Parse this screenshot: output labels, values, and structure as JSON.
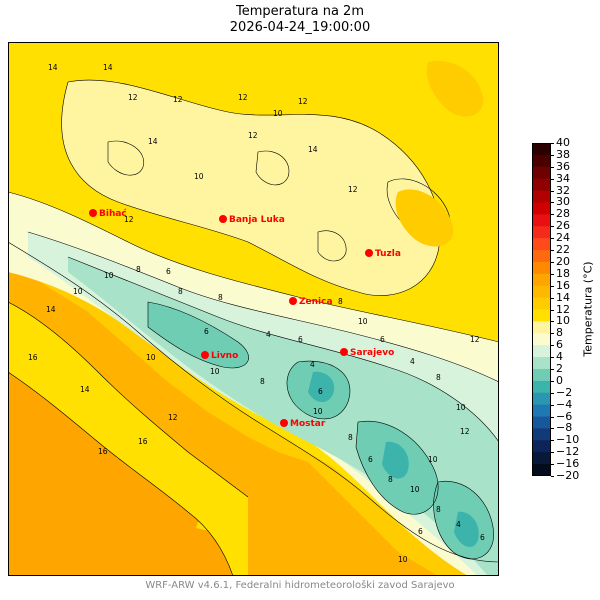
{
  "title": "Temperatura na 2m",
  "timestamp": "2026-04-24_19:00:00",
  "colorbar": {
    "label": "Temperatura (°C)",
    "ticks": [
      40,
      38,
      36,
      34,
      32,
      30,
      28,
      26,
      24,
      22,
      20,
      18,
      16,
      14,
      12,
      10,
      8,
      6,
      4,
      2,
      0,
      -2,
      -4,
      -6,
      -8,
      -10,
      -12,
      -16,
      -20
    ],
    "tick_labels": [
      "40",
      "38",
      "36",
      "34",
      "32",
      "30",
      "28",
      "26",
      "24",
      "22",
      "20",
      "18",
      "16",
      "14",
      "12",
      "10",
      "8",
      "6",
      "4",
      "2",
      "0",
      "−2",
      "−4",
      "−6",
      "−8",
      "−10",
      "−12",
      "−16",
      "−20"
    ],
    "colors": [
      "#2c0000",
      "#4a0000",
      "#6e0000",
      "#8f0000",
      "#b00000",
      "#d00000",
      "#e81010",
      "#f52a1a",
      "#ff4a1a",
      "#ff6a10",
      "#ff8a00",
      "#ffa500",
      "#ffb800",
      "#ffcc00",
      "#ffe000",
      "#fff5a0",
      "#fbfbd0",
      "#d8f3dc",
      "#a8e2c8",
      "#6fcdb4",
      "#3cb4ac",
      "#2a96b0",
      "#1f78b4",
      "#17589a",
      "#123a78",
      "#0c2458",
      "#081838",
      "#040b1c"
    ]
  },
  "map_colors": {
    "sea": "#ffb300",
    "sea_dark": "#ffa500",
    "t16": "#ffcc00",
    "t14": "#ffe000",
    "t12": "#fff5a0",
    "t10": "#fbfbd0",
    "t8": "#d8f3dc",
    "t6": "#a8e2c8",
    "t4": "#6fcdb4",
    "t2": "#3cb4ac"
  },
  "cities": [
    {
      "name": "Bihać",
      "tx": 5,
      "ty": 2
    },
    {
      "name": "Banja Luka",
      "tx": 5,
      "ty": 2
    },
    {
      "name": "Tuzla",
      "tx": 5,
      "ty": 2
    },
    {
      "name": "Zenica",
      "tx": 5,
      "ty": 2
    },
    {
      "name": "Sarajevo",
      "tx": 5,
      "ty": 2
    },
    {
      "name": "Livno",
      "tx": 5,
      "ty": 2
    },
    {
      "name": "Mostar",
      "tx": 5,
      "ty": 2
    }
  ],
  "contour_labels": [
    "14",
    "14",
    "12",
    "12",
    "10",
    "12",
    "14",
    "12",
    "12",
    "14",
    "12",
    "10",
    "12",
    "8",
    "10",
    "10",
    "8",
    "6",
    "8",
    "6",
    "4",
    "6",
    "4",
    "6",
    "8",
    "10",
    "10",
    "8",
    "10",
    "6",
    "4",
    "8",
    "10",
    "12",
    "14",
    "16",
    "14",
    "16",
    "16",
    "12",
    "10",
    "8",
    "6",
    "8",
    "10",
    "12",
    "10",
    "8",
    "6",
    "4",
    "6",
    "10"
  ],
  "footer": "WRF-ARW v4.6.1, Federalni hidrometeorološki zavod Sarajevo"
}
